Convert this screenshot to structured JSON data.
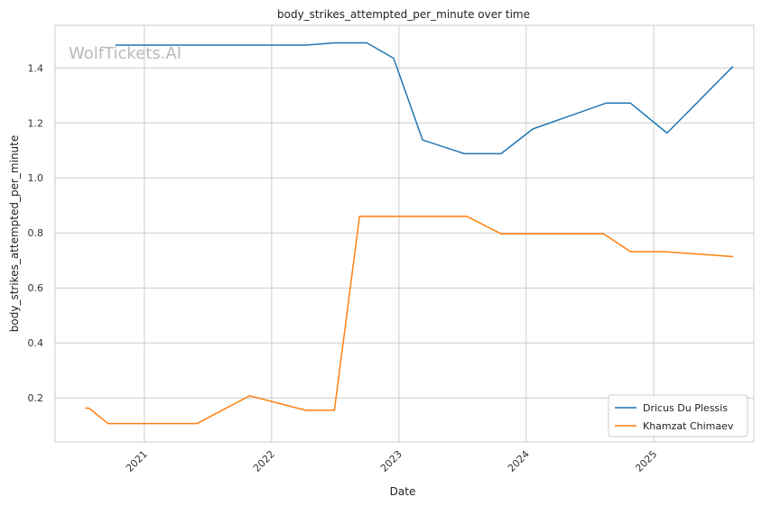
{
  "chart_data": {
    "type": "line",
    "title": "body_strikes_attempted_per_minute over time",
    "xlabel": "Date",
    "ylabel": "body_strikes_attempted_per_minute",
    "watermark": "WolfTickets.AI",
    "x_ticks": [
      "2021",
      "2022",
      "2023",
      "2024",
      "2025"
    ],
    "y_ticks": [
      "0.2",
      "0.4",
      "0.6",
      "0.8",
      "1.0",
      "1.2",
      "1.4"
    ],
    "xlim": [
      "2020-04-20",
      "2025-10-15"
    ],
    "ylim": [
      0.04,
      1.555
    ],
    "grid": true,
    "legend_position": "lower-right",
    "series": [
      {
        "name": "Dricus Du Plessis",
        "color": "#1f77b4",
        "points": [
          [
            "2020-10-10",
            1.483
          ],
          [
            "2021-01-15",
            1.483
          ],
          [
            "2021-06-15",
            1.483
          ],
          [
            "2021-12-01",
            1.483
          ],
          [
            "2022-04-09",
            1.483
          ],
          [
            "2022-07-02",
            1.491
          ],
          [
            "2022-10-01",
            1.491
          ],
          [
            "2022-12-17",
            1.435
          ],
          [
            "2023-03-10",
            1.138
          ],
          [
            "2023-07-08",
            1.088
          ],
          [
            "2023-10-21",
            1.088
          ],
          [
            "2024-01-20",
            1.178
          ],
          [
            "2024-08-17",
            1.272
          ],
          [
            "2024-10-26",
            1.272
          ],
          [
            "2025-02-08",
            1.163
          ],
          [
            "2025-08-16",
            1.405
          ]
        ]
      },
      {
        "name": "Khamzat Chimaev",
        "color": "#ff7f0e",
        "points": [
          [
            "2020-07-16",
            0.163
          ],
          [
            "2020-07-26",
            0.163
          ],
          [
            "2020-09-19",
            0.107
          ],
          [
            "2021-06-01",
            0.107
          ],
          [
            "2021-10-30",
            0.208
          ],
          [
            "2022-04-09",
            0.155
          ],
          [
            "2022-06-30",
            0.155
          ],
          [
            "2022-09-10",
            0.86
          ],
          [
            "2023-01-01",
            0.86
          ],
          [
            "2023-07-15",
            0.86
          ],
          [
            "2023-10-21",
            0.797
          ],
          [
            "2024-01-20",
            0.797
          ],
          [
            "2024-08-10",
            0.797
          ],
          [
            "2024-10-26",
            0.732
          ],
          [
            "2025-02-01",
            0.732
          ],
          [
            "2025-08-16",
            0.714
          ]
        ]
      }
    ]
  }
}
